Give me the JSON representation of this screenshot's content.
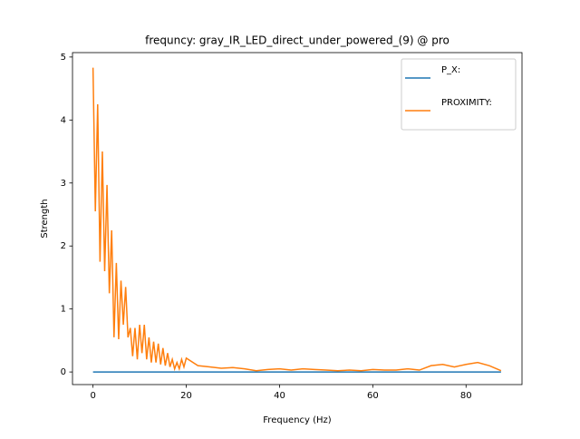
{
  "chart_data": {
    "type": "line",
    "title": "frequncy: gray_IR_LED_direct_under_powered_(9) @ pro",
    "x_label": "Frequency (Hz)",
    "y_label": "Strength",
    "x": [
      0,
      0.5,
      1,
      1.5,
      2,
      2.5,
      3,
      3.5,
      4,
      4.5,
      5,
      5.5,
      6,
      6.5,
      7,
      7.5,
      8,
      8.5,
      9,
      9.5,
      10,
      10.5,
      11,
      11.5,
      12,
      12.5,
      13,
      13.5,
      14,
      14.5,
      15,
      15.5,
      16,
      16.5,
      17,
      17.5,
      18,
      18.5,
      19,
      19.5,
      20,
      22.5,
      25,
      27.5,
      30,
      32.5,
      35,
      37.5,
      40,
      42.5,
      45,
      47.5,
      50,
      52.5,
      55,
      57.5,
      60,
      62.5,
      65,
      67.5,
      70,
      72.5,
      75,
      77.5,
      80,
      82.5,
      85,
      87.5
    ],
    "series": [
      {
        "name": "P_X:",
        "color": "#1f77b4",
        "values": [
          0,
          0,
          0,
          0,
          0,
          0,
          0,
          0,
          0,
          0,
          0,
          0,
          0,
          0,
          0,
          0,
          0,
          0,
          0,
          0,
          0,
          0,
          0,
          0,
          0,
          0,
          0,
          0,
          0,
          0,
          0,
          0,
          0,
          0,
          0,
          0,
          0,
          0,
          0,
          0,
          0,
          0,
          0,
          0,
          0,
          0,
          0,
          0,
          0,
          0,
          0,
          0,
          0,
          0,
          0,
          0,
          0,
          0,
          0,
          0,
          0,
          0,
          0,
          0,
          0,
          0,
          0,
          0
        ]
      },
      {
        "name": "PROXIMITY:",
        "color": "#ff7f0e",
        "values": [
          4.83,
          2.55,
          4.25,
          1.75,
          3.5,
          1.6,
          2.97,
          1.25,
          2.25,
          0.55,
          1.73,
          0.52,
          1.45,
          0.75,
          1.35,
          0.55,
          0.7,
          0.25,
          0.7,
          0.2,
          0.75,
          0.3,
          0.75,
          0.2,
          0.55,
          0.15,
          0.48,
          0.15,
          0.45,
          0.12,
          0.38,
          0.1,
          0.3,
          0.08,
          0.2,
          0.05,
          0.15,
          0.05,
          0.2,
          0.08,
          0.22,
          0.1,
          0.08,
          0.06,
          0.07,
          0.05,
          0.02,
          0.04,
          0.05,
          0.03,
          0.05,
          0.04,
          0.03,
          0.02,
          0.03,
          0.02,
          0.04,
          0.03,
          0.03,
          0.05,
          0.03,
          0.1,
          0.12,
          0.08,
          0.12,
          0.15,
          0.1,
          0.02
        ]
      }
    ],
    "xlim": [
      -4.4,
      92
    ],
    "ylim": [
      -0.2,
      5.07
    ],
    "xticks": [
      0,
      20,
      40,
      60,
      80
    ],
    "yticks": [
      0,
      1,
      2,
      3,
      4,
      5
    ],
    "legend": "upper right"
  }
}
